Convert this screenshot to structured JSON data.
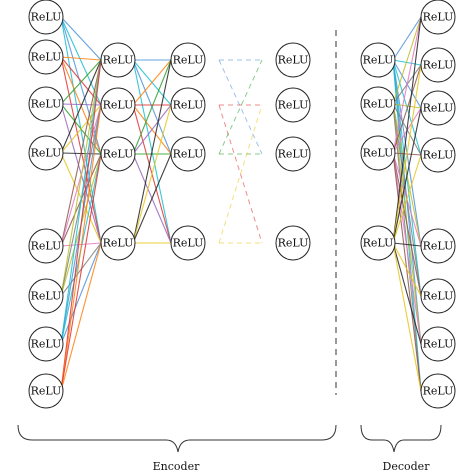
{
  "diagram": {
    "node_label": "ReLU",
    "sections": {
      "encoder_label": "Encoder",
      "decoder_label": "Decoder"
    },
    "layer_sizes": {
      "encoder_input": 8,
      "encoder_hidden_1": 4,
      "encoder_hidden_2": 4,
      "encoder_output": 4,
      "decoder_input": 4,
      "decoder_output": 8
    },
    "colors": {
      "node_stroke": "#222222",
      "edge_palette": [
        "#4a90d9",
        "#e03030",
        "#2ca02c",
        "#e6c619",
        "#8c564b",
        "#7f7f7f",
        "#17becf",
        "#ff7f0e",
        "#9467bd",
        "#222222",
        "#e377c2",
        "#bcbd22"
      ]
    }
  }
}
